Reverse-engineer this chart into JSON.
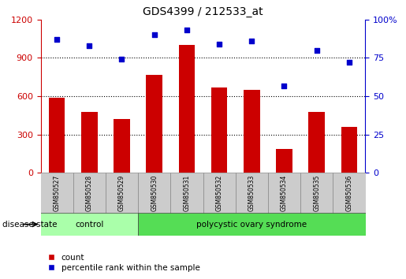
{
  "title": "GDS4399 / 212533_at",
  "samples": [
    "GSM850527",
    "GSM850528",
    "GSM850529",
    "GSM850530",
    "GSM850531",
    "GSM850532",
    "GSM850533",
    "GSM850534",
    "GSM850535",
    "GSM850536"
  ],
  "counts": [
    590,
    480,
    420,
    770,
    1000,
    670,
    650,
    190,
    480,
    360
  ],
  "percentiles": [
    87,
    83,
    74,
    90,
    93,
    84,
    86,
    57,
    80,
    72
  ],
  "bar_color": "#cc0000",
  "dot_color": "#0000cc",
  "left_ylim": [
    0,
    1200
  ],
  "right_ylim": [
    0,
    100
  ],
  "left_yticks": [
    0,
    300,
    600,
    900,
    1200
  ],
  "right_yticks": [
    0,
    25,
    50,
    75,
    100
  ],
  "grid_values": [
    300,
    600,
    900
  ],
  "control_samples": 3,
  "disease_state_label": "disease state",
  "control_label": "control",
  "disease_label": "polycystic ovary syndrome",
  "control_bg": "#aaffaa",
  "disease_bg": "#55dd55",
  "sample_bg": "#cccccc",
  "legend_count_label": "count",
  "legend_percentile_label": "percentile rank within the sample",
  "title_fontsize": 10,
  "tick_fontsize": 8,
  "label_fontsize": 8
}
